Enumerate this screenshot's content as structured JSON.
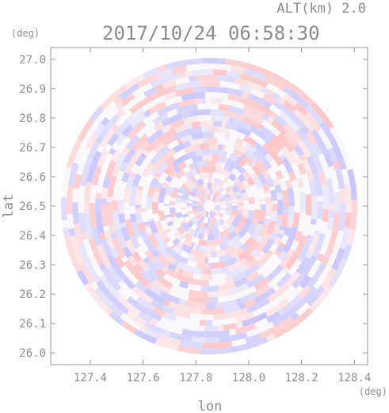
{
  "chart_data": {
    "type": "heatmap",
    "title": "2017/10/24 06:58:30",
    "subtitle": "ALT(km) 2.0",
    "xlabel": "lon",
    "ylabel": "lat",
    "x_unit": "(deg)",
    "y_unit": "(deg)",
    "xlim": [
      127.25,
      128.45
    ],
    "ylim": [
      25.96,
      27.04
    ],
    "x_ticks": [
      127.4,
      127.6,
      127.8,
      128.0,
      128.2,
      128.4
    ],
    "x_tick_labels": [
      "127.4",
      "127.6",
      "127.8",
      "128.0",
      "128.2",
      "128.4"
    ],
    "y_ticks": [
      26.0,
      26.1,
      26.2,
      26.3,
      26.4,
      26.5,
      26.6,
      26.7,
      26.8,
      26.9,
      27.0
    ],
    "y_tick_labels": [
      "26.0",
      "26.1",
      "26.2",
      "26.3",
      "26.4",
      "26.5",
      "26.6",
      "26.7",
      "26.8",
      "26.9",
      "27.0"
    ],
    "field": {
      "shape": "disk",
      "center_lon": 127.85,
      "center_lat": 26.5,
      "radius_lat_deg": 0.505
    },
    "colors": {
      "negative": "#8a8aff",
      "positive": "#ff8a8a",
      "axis": "#9a9a9a",
      "text": "#8c8c8c"
    }
  }
}
